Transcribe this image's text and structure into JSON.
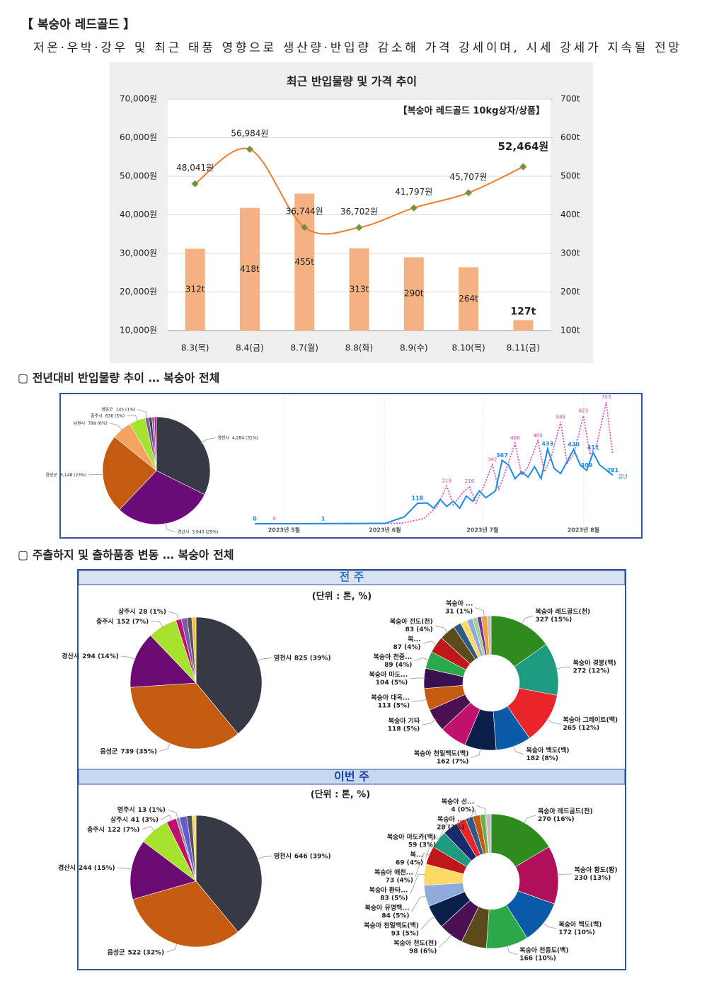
{
  "header": {
    "title": "【 복숭아 레드골드 】",
    "subtitle": "저온·우박·강우 및 최근 태풍 영향으로 생산량·반입량 감소해 가격 강세이며, 시세 강세가 지속될 전망"
  },
  "sections": [
    "▢ 전년대비 반입물량 추이 … 복숭아 전체",
    "▢ 주출하지 및 출하품종 변동 … 복숭아 전체"
  ],
  "weeks": [
    {
      "title": "전 주",
      "unit": "(단위 : 톤, %)"
    },
    {
      "title": "이번 주",
      "unit": "(단위 : 톤, %)"
    }
  ],
  "chart_data": [
    {
      "type": "combo",
      "title": "최근 반입물량 및 가격 추이",
      "annotation": "【복숭아 레드골드 10kg상자/상품】",
      "categories": [
        "8.3(목)",
        "8.4(금)",
        "8.7(월)",
        "8.8(화)",
        "8.9(수)",
        "8.10(목)",
        "8.11(금)"
      ],
      "series": [
        {
          "type": "bar",
          "axis": "y2",
          "color": "#f4b183",
          "values": [
            312,
            418,
            455,
            313,
            290,
            264,
            127
          ],
          "value_labels": [
            "312t",
            "418t",
            "455t",
            "313t",
            "290t",
            "264t",
            "127t"
          ]
        },
        {
          "type": "line",
          "color": "#ed7d31",
          "marker_color": "#76923c",
          "values": [
            48041,
            56984,
            36744,
            36702,
            41797,
            45707,
            52464
          ],
          "value_labels": [
            "48,041원",
            "56,984원",
            "36,744원",
            "36,702원",
            "41,797원",
            "45,707원",
            "52,464원"
          ]
        }
      ],
      "ylim": [
        10000,
        70000
      ],
      "yticks": [
        {
          "value": 10000,
          "label": "10,000원"
        },
        {
          "value": 20000,
          "label": "20,000원"
        },
        {
          "value": 30000,
          "label": "30,000원"
        },
        {
          "value": 40000,
          "label": "40,000원"
        },
        {
          "value": 50000,
          "label": "50,000원"
        },
        {
          "value": 60000,
          "label": "60,000원"
        },
        {
          "value": 70000,
          "label": "70,000원"
        }
      ],
      "y2lim": [
        100,
        700
      ],
      "y2ticks": [
        {
          "value": 100,
          "label": "100t"
        },
        {
          "value": 200,
          "label": "200t"
        },
        {
          "value": 300,
          "label": "300t"
        },
        {
          "value": 400,
          "label": "400t"
        },
        {
          "value": 500,
          "label": "500t"
        },
        {
          "value": 600,
          "label": "600t"
        },
        {
          "value": 700,
          "label": "700t"
        }
      ],
      "grid": true
    },
    {
      "type": "pie",
      "categories": [
        "영천시",
        "경산시",
        "음성군",
        "남원시",
        "충주시",
        "영동군",
        null,
        null,
        null
      ],
      "values": [
        4284,
        3943,
        3148,
        799,
        636,
        145,
        120,
        100,
        80
      ],
      "value_labels": [
        "4,284 (31%)",
        "3,943 (29%)",
        "3,148 (23%)",
        "799 (6%)",
        "636 (5%)",
        "145 (1%)",
        null,
        null,
        null
      ],
      "colors": [
        "#363a45",
        "#6b0a79",
        "#c55a11",
        "#f4a460",
        "#a6e22e",
        "#7a5aa8",
        "#444444",
        "#9b59b6",
        "#c0126d"
      ]
    },
    {
      "type": "line",
      "xlim": [
        0,
        112
      ],
      "ylim": [
        0,
        720
      ],
      "xticks": [
        {
          "value": 9,
          "label": "2023년 5월"
        },
        {
          "value": 40,
          "label": "2023년 6월"
        },
        {
          "value": 70,
          "label": "2023년 7월"
        },
        {
          "value": 101,
          "label": "2023년 8월"
        }
      ],
      "series": [
        {
          "color": "#e0409f",
          "dash": true,
          "x": [
            0,
            6,
            30,
            45,
            52,
            56,
            59,
            61,
            64,
            66,
            68,
            70,
            73,
            75,
            77,
            80,
            82,
            84,
            87,
            89,
            91,
            94,
            96,
            98,
            101,
            103,
            105,
            108,
            110
          ],
          "values": [
            0,
            0,
            0,
            3,
            30,
            100,
            219,
            110,
            180,
            216,
            120,
            200,
            342,
            200,
            300,
            466,
            280,
            330,
            480,
            300,
            380,
            588,
            350,
            400,
            623,
            400,
            450,
            703,
            400
          ],
          "value_labels": [
            null,
            "0",
            null,
            null,
            null,
            null,
            "219",
            null,
            null,
            "216",
            null,
            null,
            "342",
            null,
            null,
            "466",
            null,
            null,
            "480",
            null,
            null,
            "588",
            null,
            null,
            "623",
            null,
            null,
            "703",
            null
          ]
        },
        {
          "name": "금년",
          "color": "#1e88e5",
          "dash": false,
          "x": [
            0,
            21,
            40,
            46,
            50,
            53,
            55,
            57,
            59,
            61,
            63,
            65,
            67,
            69,
            71,
            74,
            76,
            78,
            80,
            82,
            84,
            86,
            88,
            90,
            92,
            94,
            96,
            98,
            100,
            102,
            104,
            106,
            110
          ],
          "values": [
            0,
            1,
            2,
            40,
            118,
            120,
            90,
            140,
            100,
            130,
            90,
            160,
            130,
            190,
            150,
            190,
            367,
            340,
            260,
            300,
            270,
            330,
            260,
            433,
            320,
            290,
            360,
            430,
            340,
            309,
            411,
            340,
            281
          ],
          "value_labels": [
            "0",
            "1",
            null,
            null,
            "118",
            null,
            null,
            null,
            null,
            null,
            null,
            null,
            null,
            null,
            null,
            null,
            "367",
            null,
            null,
            null,
            null,
            null,
            null,
            "433",
            null,
            null,
            null,
            "430",
            null,
            "309",
            "411",
            null,
            "281"
          ]
        }
      ]
    },
    {
      "type": "pie",
      "categories": [
        "영천시",
        "음성군",
        "경산시",
        "충주시",
        "상주시",
        null,
        null,
        null
      ],
      "values": [
        825,
        739,
        294,
        152,
        28,
        30,
        25,
        22
      ],
      "value_labels": [
        "825 (39%)",
        "739 (35%)",
        "294 (14%)",
        "152 (7%)",
        "28 (1%)",
        null,
        null,
        null
      ],
      "colors": [
        "#363a45",
        "#c55a11",
        "#6a0a72",
        "#a6e22e",
        "#c0126d",
        "#7a5aa8",
        "#555555",
        "#f0c040"
      ]
    },
    {
      "type": "donut",
      "categories": [
        "복숭아 레드골드(천)",
        "복숭아 경봉(백)",
        "복숭아 그레이트(백)",
        "복숭아 백도(백)",
        "복숭아 천일백도(백)",
        null,
        "복숭아 기타",
        "복숭아 대옥...",
        "복숭아 마도...",
        "복숭아 천중...",
        "복...",
        "복숭아 전도(천)",
        null,
        null,
        null,
        null,
        null,
        "복숭아 ...",
        null
      ],
      "values": [
        327,
        272,
        265,
        182,
        162,
        140,
        118,
        113,
        104,
        89,
        87,
        83,
        40,
        35,
        30,
        25,
        20,
        31,
        20
      ],
      "value_labels": [
        "327 (15%)",
        "272 (12%)",
        "265 (12%)",
        "182 (8%)",
        "162 (7%)",
        null,
        "118 (5%)",
        "113 (5%)",
        "104 (5%)",
        "89 (4%)",
        "87 (4%)",
        "83 (4%)",
        null,
        null,
        null,
        null,
        null,
        "31 (1%)",
        null
      ],
      "colors": [
        "#2e8b1e",
        "#1e9a7e",
        "#e8262a",
        "#0b5aa8",
        "#0a1f4a",
        "#c0126d",
        "#4a1050",
        "#c55a11",
        "#3a1050",
        "#2aa84a",
        "#c01818",
        "#5c4a1a",
        "#2e5a88",
        "#ffd966",
        "#8faadc",
        "#a9d18e",
        "#7030a0",
        "#f0a040",
        "#bfbfbf"
      ]
    },
    {
      "type": "pie",
      "categories": [
        "영천시",
        "음성군",
        "경산시",
        "충주시",
        "상주시",
        "영주시",
        null,
        null,
        null
      ],
      "values": [
        646,
        522,
        244,
        122,
        41,
        13,
        30,
        22,
        16
      ],
      "value_labels": [
        "646 (39%)",
        "522 (32%)",
        "244 (15%)",
        "122 (7%)",
        "41 (3%)",
        "13 (1%)",
        null,
        null,
        null
      ],
      "colors": [
        "#363a45",
        "#c55a11",
        "#6a0a72",
        "#a6e22e",
        "#c0126d",
        "#8497b0",
        "#6a5acd",
        "#555555",
        "#f5d76e"
      ]
    },
    {
      "type": "donut",
      "categories": [
        "복숭아 레드골드(천)",
        "복숭아 황도(황)",
        "복숭아 백도(백)",
        "복숭아 천중도(백)",
        null,
        "복숭아 천도(천)",
        "복숭아 천일백도(백)",
        "복숭아 유명백...",
        "복숭아 환타...",
        "복숭아 애천...",
        "복...",
        "복숭아 마도카(백)",
        null,
        null,
        "복숭아 ...",
        null,
        "복숭아 선...",
        null
      ],
      "values": [
        270,
        230,
        172,
        166,
        100,
        98,
        93,
        84,
        83,
        73,
        69,
        59,
        40,
        30,
        28,
        20,
        4,
        20
      ],
      "value_labels": [
        "270 (16%)",
        "230 (13%)",
        "172 (10%)",
        "166 (10%)",
        null,
        "98 (6%)",
        "93 (5%)",
        "84 (5%)",
        "83 (5%)",
        "73 (4%)",
        "69 (4%)",
        "59 (3%)",
        null,
        null,
        "28 (2%)",
        null,
        "4 (0%)",
        null
      ],
      "colors": [
        "#2e8b1e",
        "#b0105a",
        "#0b5aa8",
        "#2aa84a",
        "#5c4a1a",
        "#4a1050",
        "#0a1f4a",
        "#8faadc",
        "#ffd966",
        "#c01818",
        "#1e9a7e",
        "#1a2a6a",
        "#e8262a",
        "#2e5a88",
        "#c55a11",
        "#70ad47",
        "#888888",
        "#bfbfbf"
      ]
    }
  ]
}
